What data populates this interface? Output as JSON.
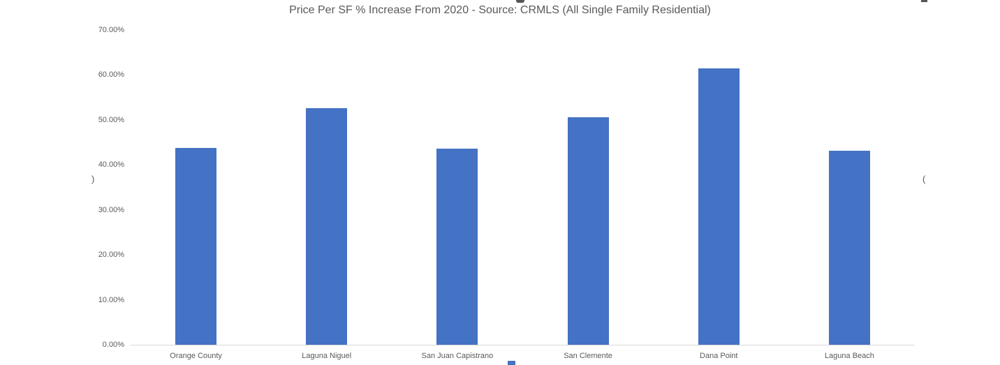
{
  "chart_data": {
    "type": "bar",
    "title": "Price Per SF % Increase From 2020 - Source: CRMLS (All Single Family Residential)",
    "categories": [
      "Orange County",
      "Laguna Niguel",
      "San Juan Capistrano",
      "San Clemente",
      "Dana Point",
      "Laguna Beach"
    ],
    "values": [
      43.8,
      52.6,
      43.6,
      50.6,
      61.5,
      43.2
    ],
    "xlabel": "",
    "ylabel": "",
    "ylim": [
      0,
      70
    ],
    "y_ticks": [
      "0.00%",
      "10.00%",
      "20.00%",
      "30.00%",
      "40.00%",
      "50.00%",
      "60.00%",
      "70.00%"
    ],
    "grid": false,
    "legend_position": "bottom (cut off at crop edge)",
    "bar_color": "#4472C4"
  },
  "colors": {
    "bar": "#4472C4",
    "axis_line": "#d8d8d8",
    "title_text": "#595959",
    "tick_text": "#595959"
  },
  "artifacts": {
    "left_partial_text": ")",
    "right_partial_text": "("
  }
}
